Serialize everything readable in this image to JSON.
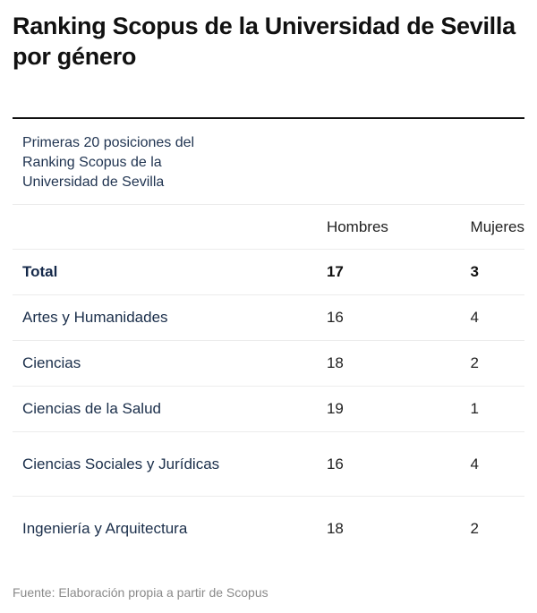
{
  "title": "Ranking Scopus de la Universidad de Sevilla por género",
  "caption": "Primeras 20 posiciones del Ranking Scopus de la Universidad de Sevilla",
  "table": {
    "headers": [
      "",
      "Hombres",
      "Mujeres"
    ],
    "rows": [
      {
        "label": "Total",
        "hombres": "17",
        "mujeres": "3"
      },
      {
        "label": "Artes y Humanidades",
        "hombres": "16",
        "mujeres": "4"
      },
      {
        "label": "Ciencias",
        "hombres": "18",
        "mujeres": "2"
      },
      {
        "label": "Ciencias de la Salud",
        "hombres": "19",
        "mujeres": "1"
      },
      {
        "label": "Ciencias Sociales y Jurídicas",
        "hombres": "16",
        "mujeres": "4"
      },
      {
        "label": "Ingeniería y Arquitectura",
        "hombres": "18",
        "mujeres": "2"
      }
    ]
  },
  "source": "Fuente: Elaboración propia a partir de Scopus",
  "colors": {
    "title": "#111111",
    "category_text": "#1a2e4a",
    "divider": "#ececec",
    "source_text": "#8a8a8a"
  },
  "chart_data": {
    "type": "table",
    "title": "Ranking Scopus de la Universidad de Sevilla por género",
    "subtitle": "Primeras 20 posiciones del Ranking Scopus de la Universidad de Sevilla",
    "categories": [
      "Total",
      "Artes y Humanidades",
      "Ciencias",
      "Ciencias de la Salud",
      "Ciencias Sociales y Jurídicas",
      "Ingeniería y Arquitectura"
    ],
    "series": [
      {
        "name": "Hombres",
        "values": [
          17,
          16,
          18,
          19,
          16,
          18
        ]
      },
      {
        "name": "Mujeres",
        "values": [
          3,
          4,
          2,
          1,
          4,
          2
        ]
      }
    ],
    "source": "Fuente: Elaboración propia a partir de Scopus"
  }
}
